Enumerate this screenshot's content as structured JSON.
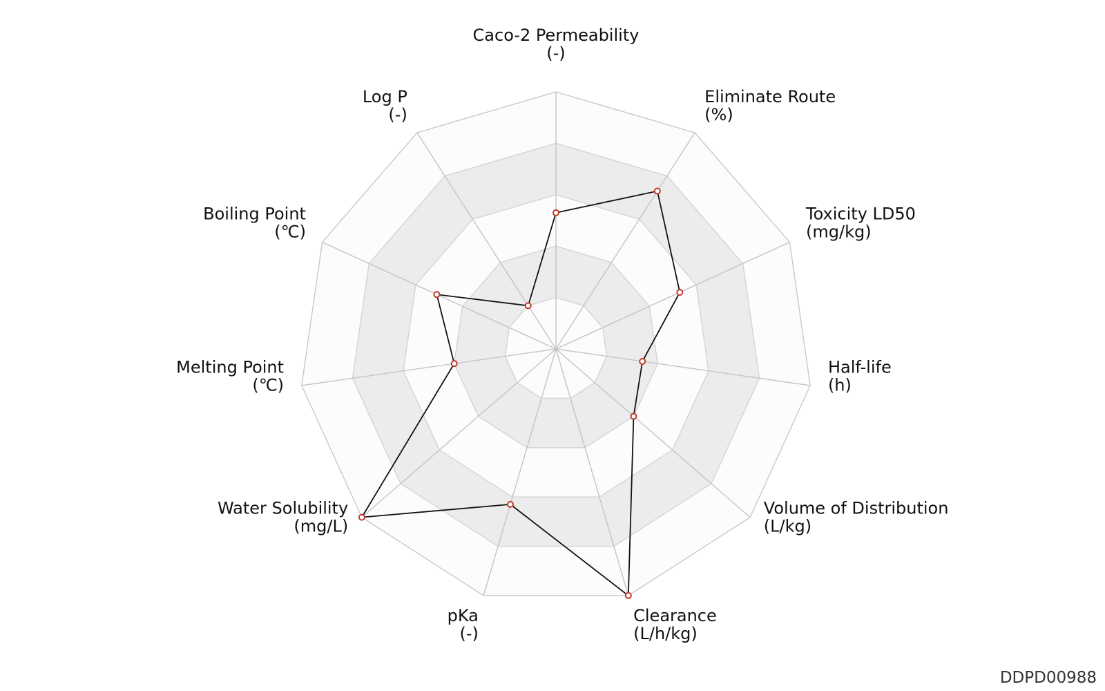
{
  "chart_data": {
    "type": "radar",
    "axes": [
      {
        "name": "Caco-2 Permeability",
        "unit": "(-)"
      },
      {
        "name": "Eliminate Route",
        "unit": "(%)"
      },
      {
        "name": "Toxicity LD50",
        "unit": "(mg/kg)"
      },
      {
        "name": "Half-life",
        "unit": "(h)"
      },
      {
        "name": "Volume of Distribution",
        "unit": "(L/kg)"
      },
      {
        "name": "Clearance",
        "unit": "(L/h/kg)"
      },
      {
        "name": "pKa",
        "unit": "(-)"
      },
      {
        "name": "Water Solubility",
        "unit": "(mg/L)"
      },
      {
        "name": "Melting Point",
        "unit": "(℃)"
      },
      {
        "name": "Boiling Point",
        "unit": "(℃)"
      },
      {
        "name": "Log P",
        "unit": "(-)"
      }
    ],
    "values": [
      0.53,
      0.73,
      0.53,
      0.34,
      0.4,
      1.0,
      0.63,
      1.0,
      0.4,
      0.51,
      0.2
    ],
    "rings": 5,
    "range": [
      0,
      1
    ],
    "band_colors": [
      "#fcfcfc",
      "#ececec"
    ],
    "line_color": "#111111",
    "marker_color": "#c0392b"
  },
  "watermark": "DDPD00988"
}
